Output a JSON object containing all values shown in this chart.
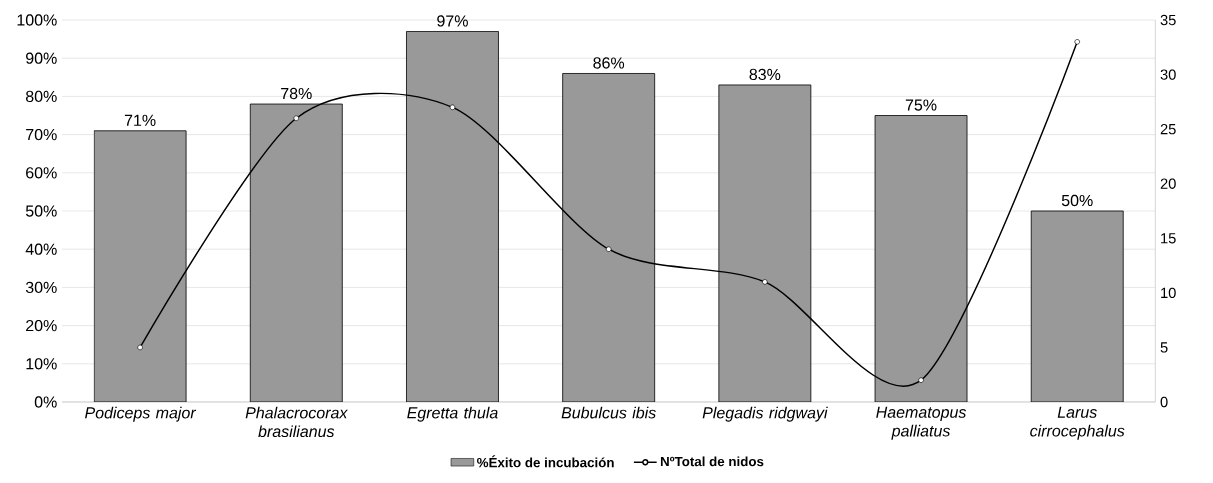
{
  "chart_data": {
    "type": "bar",
    "categories": [
      "Podiceps major",
      "Phalacrocorax brasilianus",
      "Egretta thula",
      "Bubulcus ibis",
      "Plegadis ridgwayi",
      "Haematopus palliatus",
      "Larus cirrocephalus"
    ],
    "series": [
      {
        "name": "%Éxito de incubación",
        "color": "#999999",
        "values": [
          71,
          78,
          97,
          86,
          83,
          75,
          50
        ],
        "value_labels": [
          "71%",
          "78%",
          "97%",
          "86%",
          "83%",
          "75%",
          "50%"
        ]
      },
      {
        "name": "NºTotal de nidos",
        "type": "line",
        "axis": "y2",
        "color": "#000000",
        "values": [
          5,
          26,
          27,
          14,
          11,
          2,
          33
        ]
      }
    ],
    "ylim": [
      0,
      100
    ],
    "yticks": [
      {
        "value": 0,
        "label": "0%"
      },
      {
        "value": 10,
        "label": "10%"
      },
      {
        "value": 20,
        "label": "20%"
      },
      {
        "value": 30,
        "label": "30%"
      },
      {
        "value": 40,
        "label": "40%"
      },
      {
        "value": 50,
        "label": "50%"
      },
      {
        "value": 60,
        "label": "60%"
      },
      {
        "value": 70,
        "label": "70%"
      },
      {
        "value": 80,
        "label": "80%"
      },
      {
        "value": 90,
        "label": "90%"
      },
      {
        "value": 100,
        "label": "100%"
      }
    ],
    "y2lim": [
      0,
      35
    ],
    "y2ticks": [
      0,
      5,
      10,
      15,
      20,
      25,
      30,
      35
    ],
    "grid": "y",
    "legend": "bottom",
    "marker": "circle"
  }
}
